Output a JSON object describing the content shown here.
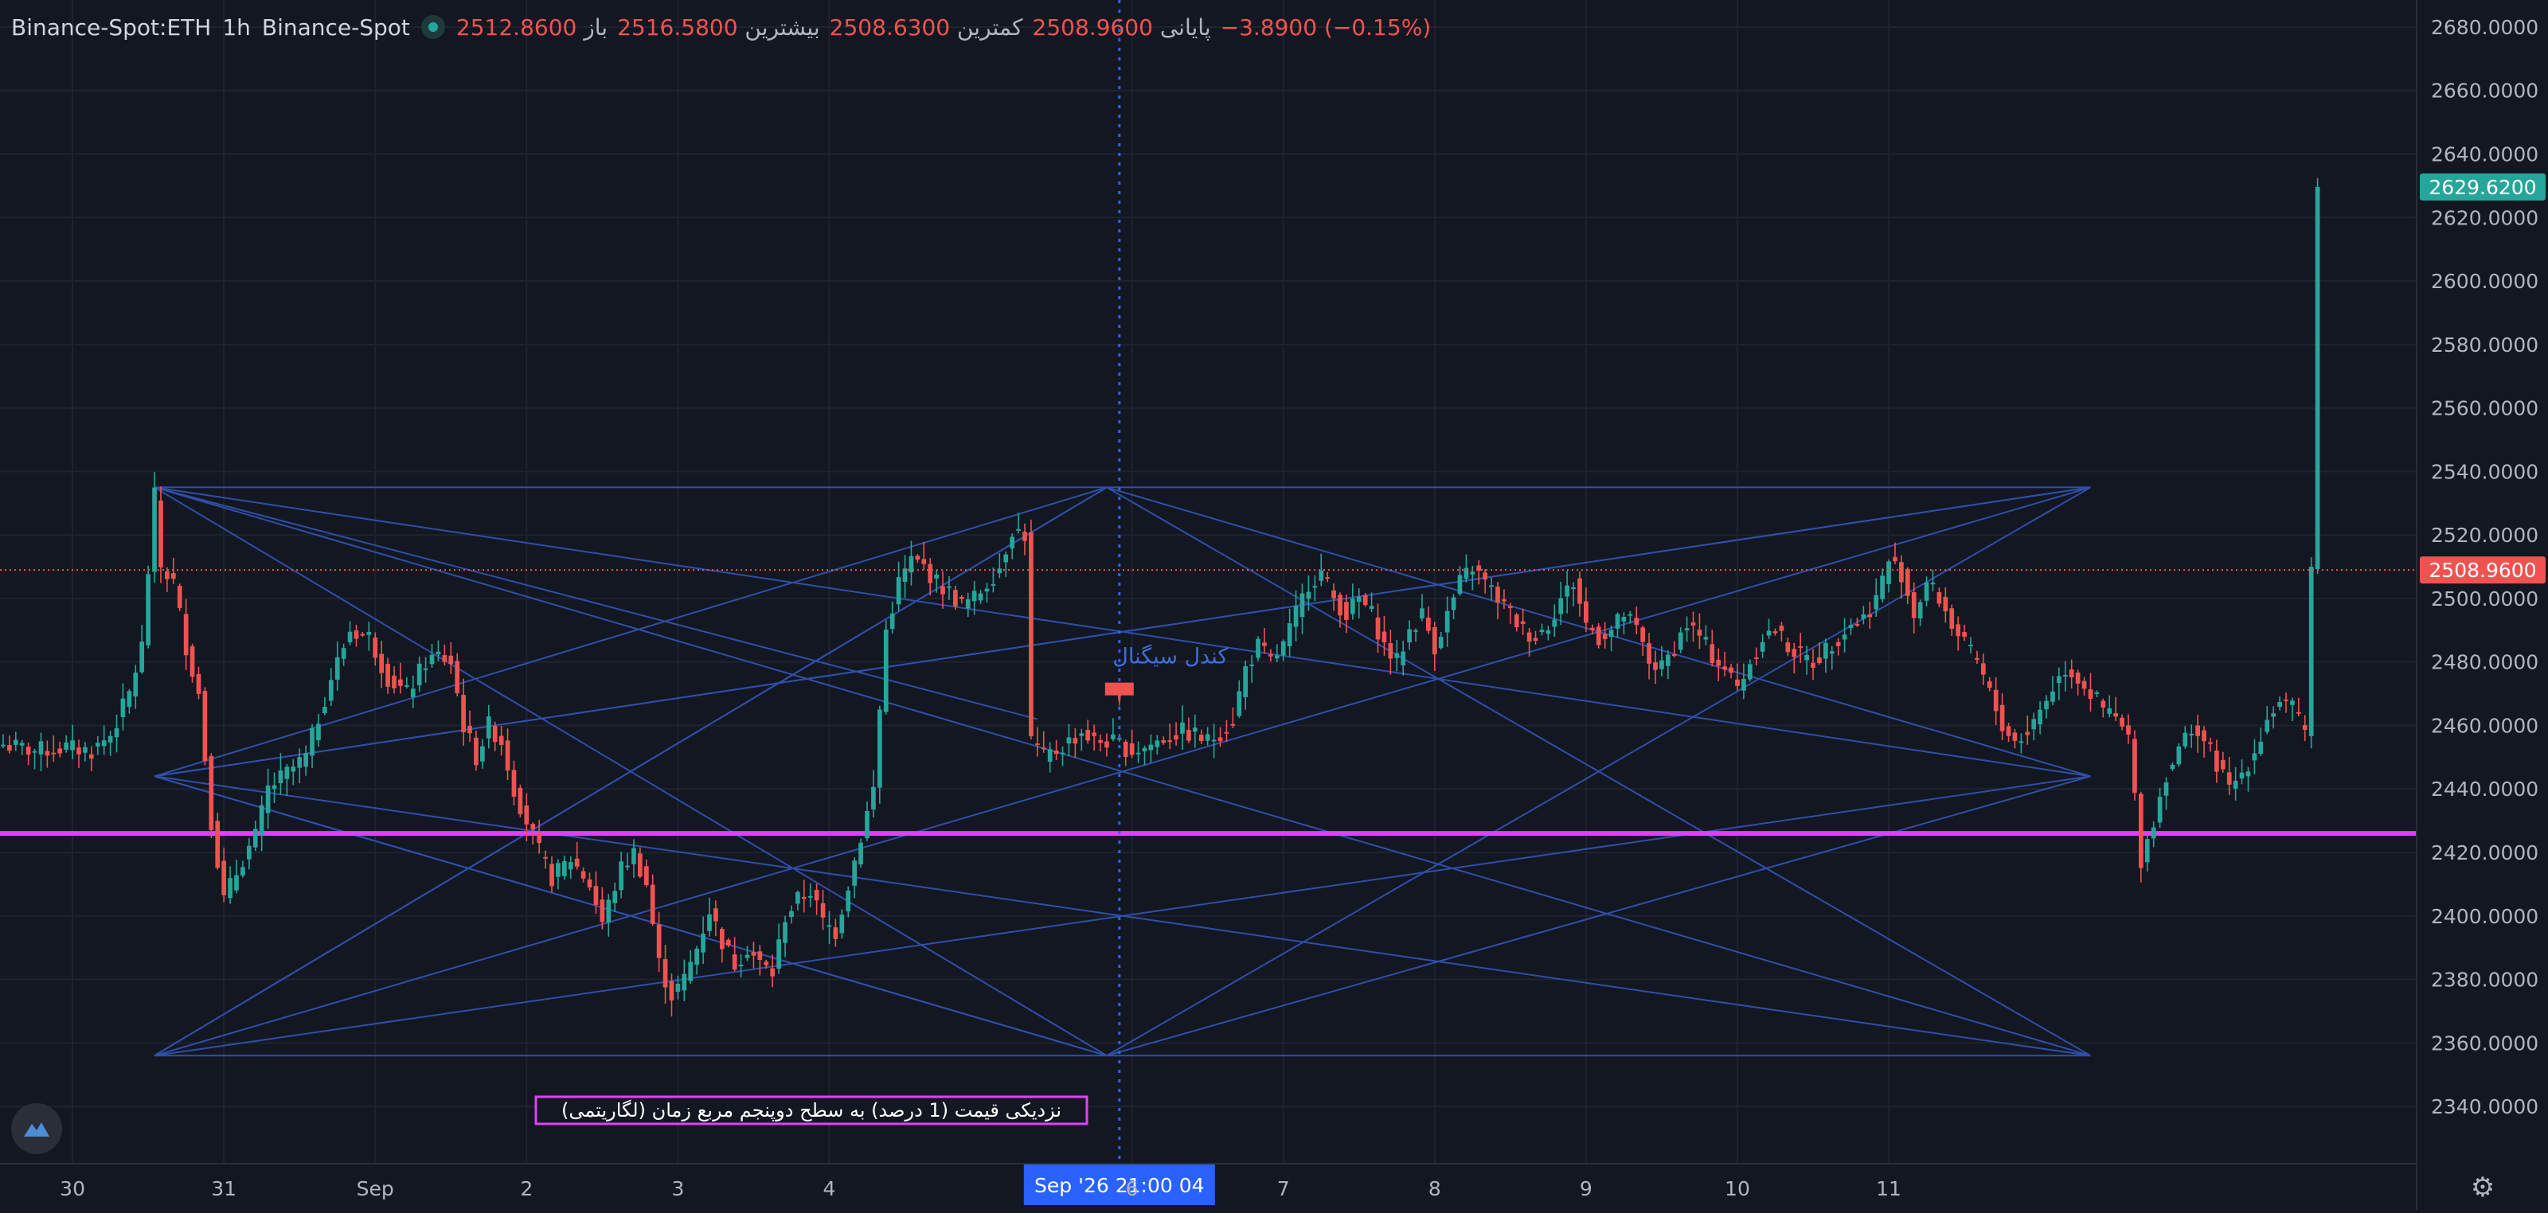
{
  "legend": {
    "symbol": "Binance-Spot:ETH",
    "interval": "1h",
    "exchange": "Binance-Spot",
    "open_label": "باز",
    "open": "2512.8600",
    "high_label": "بیشترین",
    "high": "2516.5800",
    "low_label": "کمترین",
    "low": "2508.6300",
    "close_label": "پایانی",
    "close": "2508.9600",
    "change": "−3.8900 (−0.15%)"
  },
  "colors": {
    "background": "#131722",
    "grid": "#1f2330",
    "up": "#26a69a",
    "down": "#ef5350",
    "trendline": "#2f4fa8",
    "support": "#e040fb",
    "crosshair": "#2962ff",
    "text": "#b2b5be"
  },
  "chart_data": {
    "type": "candlestick",
    "ylim": [
      2331,
      2685
    ],
    "y_ticks": [
      "2680.0000",
      "2660.0000",
      "2640.0000",
      "2620.0000",
      "2600.0000",
      "2580.0000",
      "2560.0000",
      "2540.0000",
      "2520.0000",
      "2500.0000",
      "2480.0000",
      "2460.0000",
      "2440.0000",
      "2420.0000",
      "2400.0000",
      "2380.0000",
      "2360.0000",
      "2340.0000"
    ],
    "x_ticks": [
      "30",
      "31",
      "Sep",
      "2",
      "3",
      "4",
      "6",
      "7",
      "8",
      "9",
      "10",
      "11"
    ],
    "x_ticks_day_index": [
      0,
      1,
      2,
      3,
      4,
      5,
      7,
      8,
      9,
      10,
      11,
      12
    ],
    "day_start_hour": 12,
    "bar_interval": "1h",
    "price_anchors": [
      [
        0,
        2454
      ],
      [
        5,
        2452
      ],
      [
        10,
        2453
      ],
      [
        14,
        2452
      ],
      [
        17,
        2457
      ],
      [
        20,
        2470
      ],
      [
        22,
        2485
      ],
      [
        24,
        2532
      ],
      [
        25,
        2510
      ],
      [
        27,
        2505
      ],
      [
        29,
        2485
      ],
      [
        31,
        2470
      ],
      [
        33,
        2430
      ],
      [
        35,
        2405
      ],
      [
        38,
        2418
      ],
      [
        40,
        2425
      ],
      [
        42,
        2440
      ],
      [
        45,
        2445
      ],
      [
        48,
        2450
      ],
      [
        52,
        2475
      ],
      [
        55,
        2490
      ],
      [
        58,
        2488
      ],
      [
        61,
        2475
      ],
      [
        64,
        2470
      ],
      [
        67,
        2480
      ],
      [
        69,
        2482
      ],
      [
        71,
        2480
      ],
      [
        73,
        2460
      ],
      [
        75,
        2450
      ],
      [
        77,
        2460
      ],
      [
        79,
        2455
      ],
      [
        81,
        2440
      ],
      [
        83,
        2430
      ],
      [
        85,
        2420
      ],
      [
        87,
        2412
      ],
      [
        90,
        2418
      ],
      [
        93,
        2410
      ],
      [
        95,
        2398
      ],
      [
        98,
        2415
      ],
      [
        100,
        2420
      ],
      [
        102,
        2410
      ],
      [
        104,
        2385
      ],
      [
        106,
        2375
      ],
      [
        108,
        2380
      ],
      [
        110,
        2390
      ],
      [
        112,
        2402
      ],
      [
        114,
        2392
      ],
      [
        116,
        2385
      ],
      [
        118,
        2390
      ],
      [
        120,
        2385
      ],
      [
        122,
        2382
      ],
      [
        124,
        2400
      ],
      [
        126,
        2405
      ],
      [
        128,
        2408
      ],
      [
        130,
        2398
      ],
      [
        132,
        2395
      ],
      [
        134,
        2410
      ],
      [
        136,
        2425
      ],
      [
        138,
        2440
      ],
      [
        140,
        2490
      ],
      [
        142,
        2505
      ],
      [
        144,
        2512
      ],
      [
        146,
        2510
      ],
      [
        148,
        2505
      ],
      [
        150,
        2502
      ],
      [
        152,
        2498
      ],
      [
        154,
        2500
      ],
      [
        156,
        2505
      ],
      [
        158,
        2510
      ],
      [
        160,
        2522
      ],
      [
        162,
        2520
      ],
      [
        163,
        2455
      ],
      [
        165,
        2450
      ],
      [
        167,
        2452
      ],
      [
        169,
        2455
      ],
      [
        171,
        2458
      ],
      [
        173,
        2455
      ],
      [
        175,
        2455
      ],
      [
        177,
        2454
      ],
      [
        179,
        2452
      ],
      [
        181,
        2453
      ],
      [
        183,
        2455
      ],
      [
        185,
        2457
      ],
      [
        187,
        2458
      ],
      [
        189,
        2457
      ],
      [
        191,
        2455
      ],
      [
        193,
        2458
      ],
      [
        195,
        2462
      ],
      [
        197,
        2478
      ],
      [
        199,
        2485
      ],
      [
        201,
        2480
      ],
      [
        203,
        2485
      ],
      [
        205,
        2495
      ],
      [
        207,
        2505
      ],
      [
        209,
        2508
      ],
      [
        211,
        2500
      ],
      [
        213,
        2495
      ],
      [
        215,
        2500
      ],
      [
        217,
        2495
      ],
      [
        219,
        2485
      ],
      [
        221,
        2480
      ],
      [
        223,
        2490
      ],
      [
        225,
        2495
      ],
      [
        227,
        2485
      ],
      [
        229,
        2495
      ],
      [
        231,
        2505
      ],
      [
        233,
        2510
      ],
      [
        235,
        2505
      ],
      [
        237,
        2500
      ],
      [
        239,
        2495
      ],
      [
        241,
        2490
      ],
      [
        243,
        2488
      ],
      [
        245,
        2492
      ],
      [
        247,
        2500
      ],
      [
        249,
        2505
      ],
      [
        251,
        2492
      ],
      [
        253,
        2488
      ],
      [
        255,
        2490
      ],
      [
        257,
        2495
      ],
      [
        259,
        2490
      ],
      [
        261,
        2480
      ],
      [
        263,
        2478
      ],
      [
        265,
        2485
      ],
      [
        267,
        2492
      ],
      [
        269,
        2488
      ],
      [
        271,
        2482
      ],
      [
        273,
        2478
      ],
      [
        275,
        2472
      ],
      [
        277,
        2480
      ],
      [
        279,
        2488
      ],
      [
        281,
        2490
      ],
      [
        283,
        2485
      ],
      [
        285,
        2482
      ],
      [
        287,
        2480
      ],
      [
        289,
        2484
      ],
      [
        291,
        2488
      ],
      [
        293,
        2492
      ],
      [
        295,
        2494
      ],
      [
        297,
        2500
      ],
      [
        299,
        2512
      ],
      [
        301,
        2508
      ],
      [
        303,
        2495
      ],
      [
        305,
        2505
      ],
      [
        307,
        2500
      ],
      [
        309,
        2492
      ],
      [
        311,
        2485
      ],
      [
        313,
        2480
      ],
      [
        315,
        2470
      ],
      [
        317,
        2460
      ],
      [
        319,
        2455
      ],
      [
        321,
        2458
      ],
      [
        323,
        2465
      ],
      [
        325,
        2472
      ],
      [
        327,
        2478
      ],
      [
        329,
        2475
      ],
      [
        331,
        2470
      ],
      [
        333,
        2465
      ],
      [
        335,
        2462
      ],
      [
        337,
        2456
      ],
      [
        339,
        2418
      ],
      [
        341,
        2430
      ],
      [
        343,
        2445
      ],
      [
        345,
        2452
      ],
      [
        347,
        2460
      ],
      [
        349,
        2455
      ],
      [
        351,
        2448
      ],
      [
        353,
        2440
      ],
      [
        355,
        2445
      ],
      [
        357,
        2452
      ],
      [
        359,
        2462
      ],
      [
        361,
        2468
      ],
      [
        363,
        2465
      ],
      [
        365,
        2458
      ],
      [
        366,
        2510
      ],
      [
        367,
        2629.62
      ]
    ],
    "last_price": "2629.6200",
    "reference_price": "2508.9600",
    "support_level": 2426,
    "support_label": "نزدیکی قیمت (1 درصد) به سطح دوپنجم مربع زمان (لگاریتمی)",
    "signal_label": "کندل سیگنال",
    "crosshair_time_label": "Sep '26   21:00 04",
    "crosshair_bar_index": 177,
    "square_box": {
      "bar_start": 24,
      "bar_end": 331,
      "price_top": 2535,
      "price_bottom": 2356
    },
    "trend_lines": [
      [
        [
          24,
          2535
        ],
        [
          331,
          2356
        ]
      ],
      [
        [
          24,
          2535
        ],
        [
          175,
          2356
        ]
      ],
      [
        [
          24,
          2535
        ],
        [
          164,
          2462
        ]
      ],
      [
        [
          24,
          2444
        ],
        [
          175,
          2535
        ]
      ],
      [
        [
          24,
          2444
        ],
        [
          331,
          2535
        ]
      ],
      [
        [
          24,
          2444
        ],
        [
          175,
          2356
        ]
      ],
      [
        [
          24,
          2444
        ],
        [
          331,
          2356
        ]
      ],
      [
        [
          24,
          2356
        ],
        [
          331,
          2535
        ]
      ],
      [
        [
          24,
          2356
        ],
        [
          175,
          2535
        ]
      ],
      [
        [
          24,
          2356
        ],
        [
          331,
          2444
        ]
      ],
      [
        [
          175,
          2535
        ],
        [
          331,
          2356
        ]
      ],
      [
        [
          175,
          2535
        ],
        [
          331,
          2444
        ]
      ],
      [
        [
          175,
          2535
        ],
        [
          24,
          2356
        ]
      ],
      [
        [
          175,
          2356
        ],
        [
          331,
          2535
        ]
      ],
      [
        [
          175,
          2356
        ],
        [
          331,
          2444
        ]
      ],
      [
        [
          175,
          2356
        ],
        [
          24,
          2444
        ]
      ],
      [
        [
          331,
          2535
        ],
        [
          24,
          2444
        ]
      ],
      [
        [
          331,
          2444
        ],
        [
          24,
          2535
        ]
      ],
      [
        [
          175,
          2535
        ],
        [
          331,
          2535
        ]
      ],
      [
        [
          24,
          2535
        ],
        [
          175,
          2535
        ]
      ],
      [
        [
          24,
          2356
        ],
        [
          175,
          2356
        ]
      ],
      [
        [
          175,
          2356
        ],
        [
          331,
          2356
        ]
      ]
    ]
  }
}
